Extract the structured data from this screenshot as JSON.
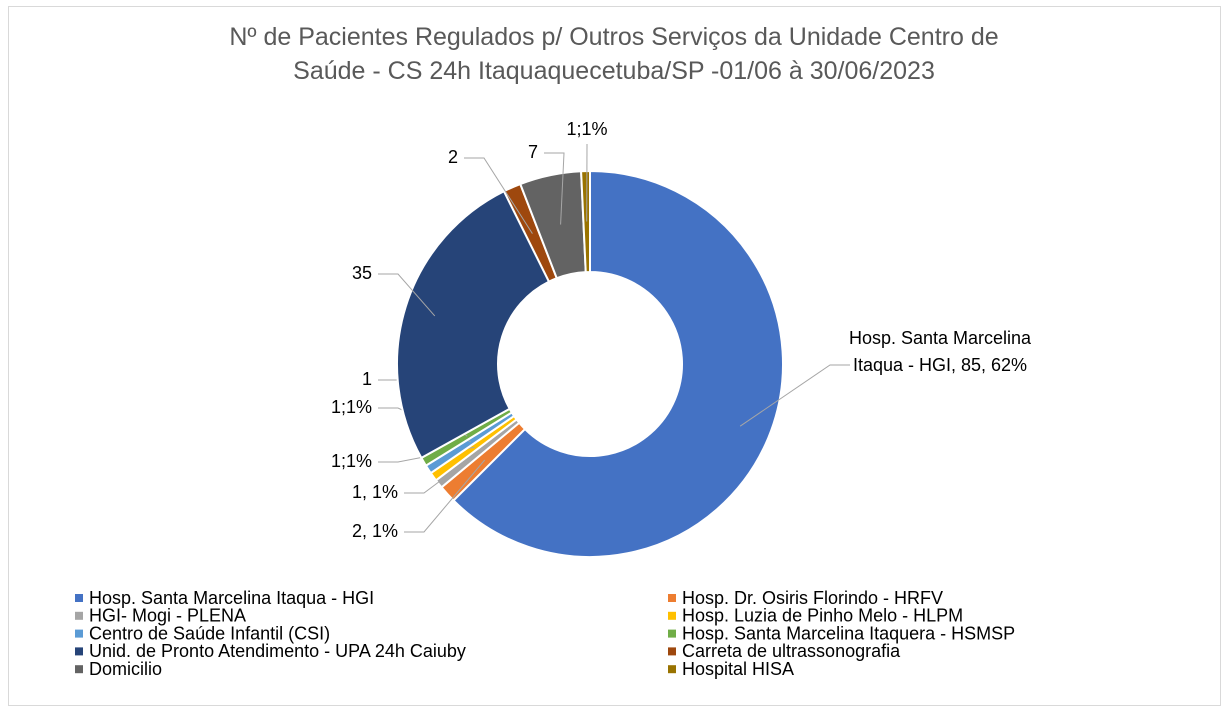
{
  "chart_data": {
    "type": "doughnut",
    "title": "Nº de Pacientes Regulados p/ Outros Serviços da Unidade Centro de Saúde - CS 24h Itaquaquecetuba/SP -01/06 à 30/06/2023",
    "categories": [
      "Hosp. Santa Marcelina Itaqua - HGI",
      "Hosp. Dr.  Osiris Florindo - HRFV",
      "HGI- Mogi - PLENA",
      "Hosp. Luzia de  Pinho Melo - HLPM",
      "Centro de Saúde Infantil (CSI)",
      "Hosp. Santa Marcelina Itaquera - HSMSP",
      "Unid. de Pronto Atendimento - UPA 24h Caiuby",
      "Carreta de ultrassonografia",
      "Domicilio",
      "Hospital HISA"
    ],
    "values": [
      85,
      2,
      1,
      1,
      1,
      1,
      35,
      2,
      7,
      1
    ],
    "value_labels": [
      "Hosp. Santa Marcelina Itaqua - HGI, 85, 62%",
      "2, 1%",
      "1, 1%",
      "1;1%",
      "1;1%",
      "1",
      "35",
      "2",
      "7",
      "1;1%"
    ],
    "colors": [
      "#4472c4",
      "#ed7d31",
      "#a5a5a5",
      "#ffc000",
      "#5b9bd5",
      "#70ad47",
      "#264478",
      "#9e480e",
      "#636363",
      "#997300"
    ],
    "legend": "bottom"
  }
}
